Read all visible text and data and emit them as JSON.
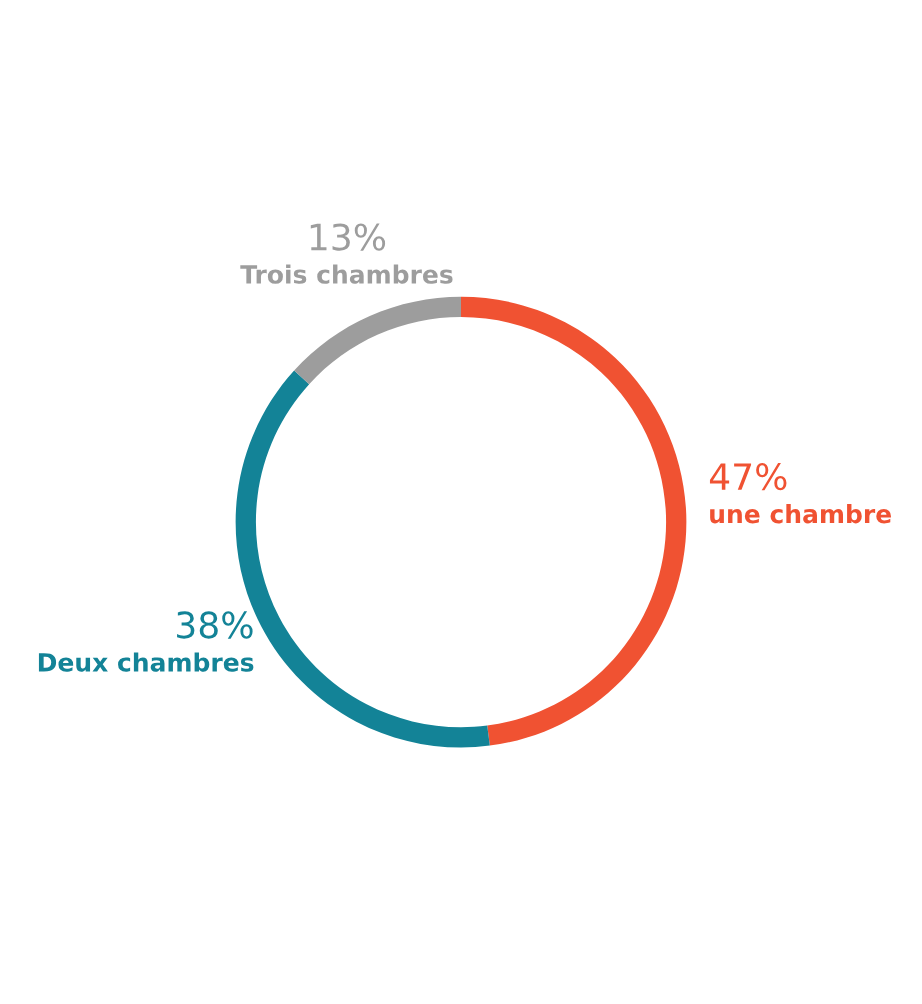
{
  "chart_data": {
    "type": "donut",
    "categories": [
      "une chambre",
      "Deux chambres",
      "Trois chambres"
    ],
    "values": [
      47,
      38,
      13
    ],
    "colors": [
      "#f05232",
      "#138397",
      "#9d9d9d"
    ],
    "value_labels": [
      "47%",
      "38%",
      "13%"
    ],
    "legend": false
  }
}
